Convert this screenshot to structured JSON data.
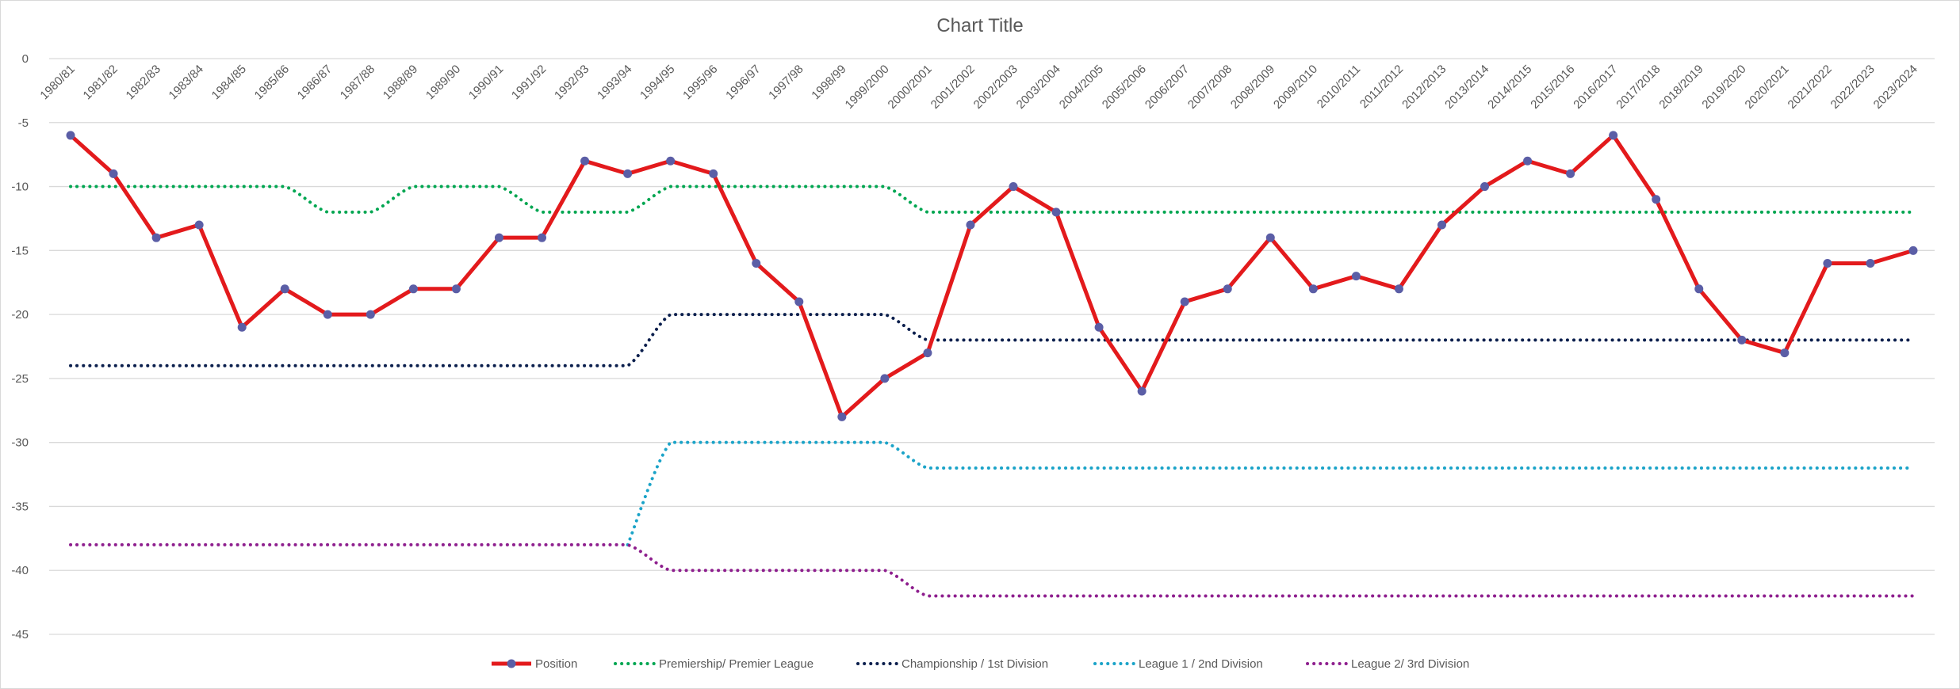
{
  "chart_data": {
    "type": "line",
    "title": "Chart Title",
    "xlabel": "",
    "ylabel": "",
    "ylim": [
      -45,
      0
    ],
    "y_ticks": [
      0,
      -5,
      -10,
      -15,
      -20,
      -25,
      -30,
      -35,
      -40,
      -45
    ],
    "grid": true,
    "legend_position": "bottom",
    "categories": [
      "1980/81",
      "1981/82",
      "1982/83",
      "1983/84",
      "1984/85",
      "1985/86",
      "1986/87",
      "1987/88",
      "1988/89",
      "1989/90",
      "1990/91",
      "1991/92",
      "1992/93",
      "1993/94",
      "1994/95",
      "1995/96",
      "1996/97",
      "1997/98",
      "1998/99",
      "1999/2000",
      "2000/2001",
      "2001/2002",
      "2002/2003",
      "2003/2004",
      "2004/2005",
      "2005/2006",
      "2006/2007",
      "2007/2008",
      "2008/2009",
      "2009/2010",
      "2010/2011",
      "2011/2012",
      "2012/2013",
      "2013/2014",
      "2014/2015",
      "2015/2016",
      "2016/2017",
      "2017/2018",
      "2018/2019",
      "2019/2020",
      "2020/2021",
      "2021/2022",
      "2022/2023",
      "2023/2024"
    ],
    "series": [
      {
        "name": "Position",
        "color": "#e31a1c",
        "style": "solid-markers",
        "values": [
          -6,
          -9,
          -14,
          -13,
          -21,
          -18,
          -20,
          -20,
          -18,
          -18,
          -14,
          -14,
          -8,
          -9,
          -8,
          -9,
          -16,
          -19,
          -28,
          -25,
          -23,
          -13,
          -10,
          -12,
          -21,
          -26,
          -19,
          -18,
          -14,
          -18,
          -17,
          -18,
          -13,
          -10,
          -8,
          -9,
          -6,
          -11,
          -18,
          -22,
          -23,
          -16,
          -16,
          -15
        ]
      },
      {
        "name": "Premiership/ Premier League",
        "color": "#00a651",
        "style": "dotted",
        "values": [
          -10,
          -10,
          -10,
          -10,
          -10,
          -10,
          -12,
          -12,
          -10,
          -10,
          -10,
          -12,
          -12,
          -12,
          -10,
          -10,
          -10,
          -10,
          -10,
          -10,
          -12,
          -12,
          -12,
          -12,
          -12,
          -12,
          -12,
          -12,
          -12,
          -12,
          -12,
          -12,
          -12,
          -12,
          -12,
          -12,
          -12,
          -12,
          -12,
          -12,
          -12,
          -12,
          -12,
          -12
        ]
      },
      {
        "name": "Championship / 1st Division",
        "color": "#0b1f4d",
        "style": "dotted",
        "values": [
          -24,
          -24,
          -24,
          -24,
          -24,
          -24,
          -24,
          -24,
          -24,
          -24,
          -24,
          -24,
          -24,
          -24,
          -20,
          -20,
          -20,
          -20,
          -20,
          -20,
          -22,
          -22,
          -22,
          -22,
          -22,
          -22,
          -22,
          -22,
          -22,
          -22,
          -22,
          -22,
          -22,
          -22,
          -22,
          -22,
          -22,
          -22,
          -22,
          -22,
          -22,
          -22,
          -22,
          -22
        ]
      },
      {
        "name": "League 1 / 2nd Division",
        "color": "#1aa3c8",
        "style": "dotted",
        "values": [
          null,
          null,
          null,
          null,
          null,
          null,
          null,
          null,
          null,
          null,
          null,
          null,
          null,
          -38,
          -30,
          -30,
          -30,
          -30,
          -30,
          -30,
          -32,
          -32,
          -32,
          -32,
          -32,
          -32,
          -32,
          -32,
          -32,
          -32,
          -32,
          -32,
          -32,
          -32,
          -32,
          -32,
          -32,
          -32,
          -32,
          -32,
          -32,
          -32,
          -32,
          -32
        ]
      },
      {
        "name": "League 2/ 3rd Division",
        "color": "#8e1f8e",
        "style": "dotted",
        "values": [
          -38,
          -38,
          -38,
          -38,
          -38,
          -38,
          -38,
          -38,
          -38,
          -38,
          -38,
          -38,
          -38,
          -38,
          -40,
          -40,
          -40,
          -40,
          -40,
          -40,
          -42,
          -42,
          -42,
          -42,
          -42,
          -42,
          -42,
          -42,
          -42,
          -42,
          -42,
          -42,
          -42,
          -42,
          -42,
          -42,
          -42,
          -42,
          -42,
          -42,
          -42,
          -42,
          -42,
          -42
        ]
      }
    ]
  }
}
